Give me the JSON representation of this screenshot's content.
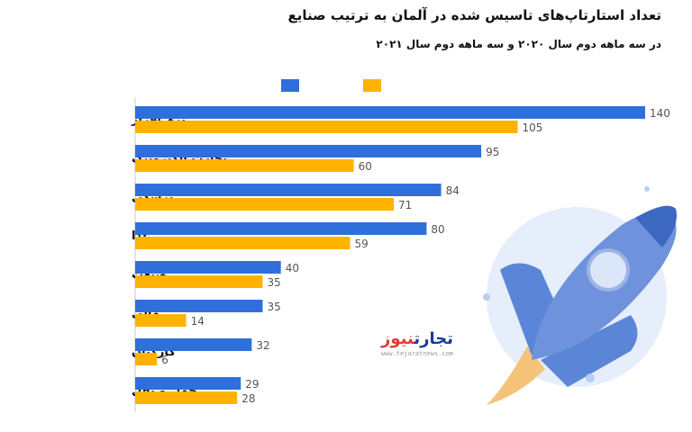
{
  "header": {
    "title": "تعداد استارتاپ‌های تاسیس شده در آلمان به ترتیب صنایع",
    "subtitle": "در سه ماهه دوم سال ۲۰۲۰ و سه ماهه دوم سال ۲۰۲۱"
  },
  "logo": {
    "part1": "تجارت",
    "part2": "نیوز",
    "url": "www.tejaratnews.com"
  },
  "colors": {
    "series_2021": "#2f6fdc",
    "series_2020": "#ffb300",
    "rocket": "#4f7fd6",
    "axis": "#c8c8c8"
  },
  "chart_data": {
    "type": "bar",
    "orientation": "horizontal",
    "title": "تعداد استارتاپ‌های تاسیس شده در آلمان به ترتیب صنایع",
    "subtitle": "در سه ماهه دوم سال ۲۰۲۰ و سه ماهه دوم سال ۲۰۲۱",
    "categories": [
      "نرم افزار",
      "تجارت الکترونیک",
      "پزشکی",
      "غذا",
      "صنعت",
      "مالی",
      "کارکنان",
      "حمل و نقل"
    ],
    "series": [
      {
        "values": [
          140,
          95,
          84,
          80,
          40,
          35,
          32,
          29
        ],
        "color": "#2f6fdc"
      },
      {
        "values": [
          105,
          60,
          71,
          59,
          35,
          14,
          6,
          28
        ],
        "color": "#ffb300"
      }
    ],
    "xlim": [
      0,
      140
    ],
    "grid": false,
    "legend": "top",
    "data_labels": true
  }
}
